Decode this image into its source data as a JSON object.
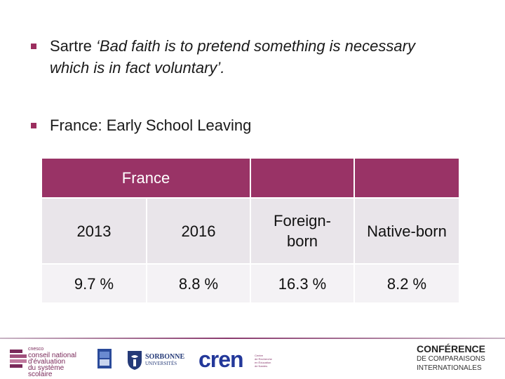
{
  "bullets": [
    {
      "plain": "Sartre ",
      "italic1": "‘Bad faith is to pretend something is necessary",
      "italic2": "which is in fact voluntary’."
    },
    {
      "text": "France: Early School Leaving"
    }
  ],
  "table": {
    "header": "France",
    "columns": [
      "2013",
      "2016",
      "Foreign-",
      "born",
      "Native-born"
    ],
    "values": [
      "9.7 %",
      "8.8 %",
      "16.3 %",
      "8.2 %"
    ]
  },
  "footer": {
    "cnesco": {
      "small": "cnesco",
      "line1": "conseil national",
      "line2": "d'évaluation",
      "line3": "du système scolaire"
    },
    "sorbonne": {
      "line1": "SORBONNE",
      "line2": "UNIVERSITÉS"
    },
    "cren": {
      "word": "cren",
      "tag1": "Centre",
      "tag2": "de Recherche",
      "tag3": "en Éducation",
      "tag4": "de Nantes"
    },
    "conference": {
      "line1": "CONFÉRENCE",
      "line2": "DE COMPARAISONS",
      "line3": "INTERNATIONALES"
    }
  },
  "colors": {
    "accent": "#993366",
    "row_light": "#e9e5ea",
    "row_lighter": "#f4f2f5"
  }
}
